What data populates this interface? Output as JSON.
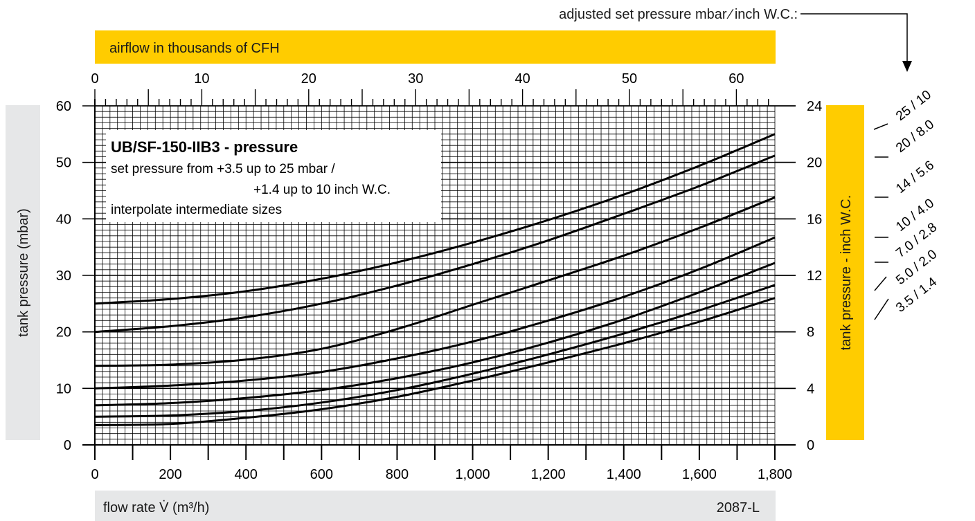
{
  "top_note": "adjusted set pressure mbar ∕ inch W.C.:",
  "bands": {
    "top_label": "airflow in thousands of CFH",
    "bottom_label": "flow rate V̇ (m³/h)",
    "bottom_code": "2087-L",
    "left_label": "tank pressure (mbar)",
    "right_label": "tank pressure  - inch W.C."
  },
  "info_box": {
    "title": "UB/SF-150-IIB3 - pressure",
    "line1": "set pressure from   +3.5 up to 25 mbar /",
    "line2": "+1.4 up to 10 inch W.C.",
    "line3": "interpolate intermediate sizes"
  },
  "chart_data": {
    "type": "line",
    "title": "UB/SF-150-IIB3 - pressure",
    "xlabel": "flow rate V̇ (m³/h)",
    "ylabel": "tank pressure (mbar)",
    "x2label": "airflow in thousands of CFH",
    "y2label": "tank pressure  - inch W.C.",
    "xlim": [
      0,
      1800
    ],
    "ylim": [
      0,
      60
    ],
    "x2lim": [
      0,
      63.6
    ],
    "y2lim": [
      0,
      24
    ],
    "x_ticks": [
      "0",
      "200",
      "400",
      "600",
      "800",
      "1,000",
      "1,200",
      "1,400",
      "1,600",
      "1,800"
    ],
    "y_ticks": [
      "0",
      "10",
      "20",
      "30",
      "40",
      "50",
      "60"
    ],
    "x2_ticks": [
      "0",
      "10",
      "20",
      "30",
      "40",
      "50",
      "60"
    ],
    "y2_ticks": [
      "0",
      "4",
      "8",
      "12",
      "16",
      "20",
      "24"
    ],
    "grid": true,
    "series": [
      {
        "name": "25 / 10",
        "points": [
          [
            0,
            25
          ],
          [
            200,
            25.8
          ],
          [
            400,
            27.2
          ],
          [
            600,
            29.4
          ],
          [
            800,
            32.3
          ],
          [
            1000,
            35.8
          ],
          [
            1200,
            39.8
          ],
          [
            1400,
            44.3
          ],
          [
            1600,
            49.4
          ],
          [
            1800,
            55
          ]
        ]
      },
      {
        "name": "20 / 8.0",
        "points": [
          [
            0,
            20
          ],
          [
            200,
            21
          ],
          [
            400,
            22.6
          ],
          [
            600,
            25
          ],
          [
            800,
            28.2
          ],
          [
            1000,
            32
          ],
          [
            1200,
            36.2
          ],
          [
            1400,
            40.9
          ],
          [
            1600,
            45.8
          ],
          [
            1800,
            51.2
          ]
        ]
      },
      {
        "name": "14 / 5.6",
        "points": [
          [
            0,
            14
          ],
          [
            200,
            14.2
          ],
          [
            400,
            15.1
          ],
          [
            600,
            17
          ],
          [
            800,
            20.5
          ],
          [
            1000,
            24.8
          ],
          [
            1200,
            29.1
          ],
          [
            1400,
            33.5
          ],
          [
            1600,
            38.4
          ],
          [
            1800,
            43.8
          ]
        ]
      },
      {
        "name": "10 / 4.0",
        "points": [
          [
            0,
            10
          ],
          [
            200,
            10.5
          ],
          [
            400,
            11.4
          ],
          [
            600,
            12.9
          ],
          [
            800,
            15.3
          ],
          [
            1000,
            18.3
          ],
          [
            1200,
            22
          ],
          [
            1400,
            26.2
          ],
          [
            1600,
            31.1
          ],
          [
            1800,
            36.7
          ]
        ]
      },
      {
        "name": "7.0 / 2.8",
        "points": [
          [
            0,
            7
          ],
          [
            200,
            7.4
          ],
          [
            400,
            8.3
          ],
          [
            600,
            9.7
          ],
          [
            800,
            11.8
          ],
          [
            1000,
            14.6
          ],
          [
            1200,
            18.1
          ],
          [
            1400,
            22.2
          ],
          [
            1600,
            27
          ],
          [
            1800,
            32.2
          ]
        ]
      },
      {
        "name": "5.0 / 2.0",
        "points": [
          [
            0,
            5
          ],
          [
            200,
            5.2
          ],
          [
            400,
            6
          ],
          [
            600,
            7.5
          ],
          [
            800,
            9.7
          ],
          [
            1000,
            12.6
          ],
          [
            1200,
            16
          ],
          [
            1400,
            19.7
          ],
          [
            1600,
            23.8
          ],
          [
            1800,
            28.3
          ]
        ]
      },
      {
        "name": "3.5 / 1.4",
        "points": [
          [
            0,
            3.5
          ],
          [
            200,
            3.7
          ],
          [
            400,
            4.8
          ],
          [
            600,
            6.3
          ],
          [
            800,
            8.5
          ],
          [
            1000,
            11.4
          ],
          [
            1200,
            14.6
          ],
          [
            1400,
            18
          ],
          [
            1600,
            21.8
          ],
          [
            1800,
            26
          ]
        ]
      }
    ],
    "colors": {
      "band_yellow": "#FFCC00",
      "band_gray": "#E6E7E8",
      "grid": "#000000",
      "curve": "#000000"
    }
  }
}
